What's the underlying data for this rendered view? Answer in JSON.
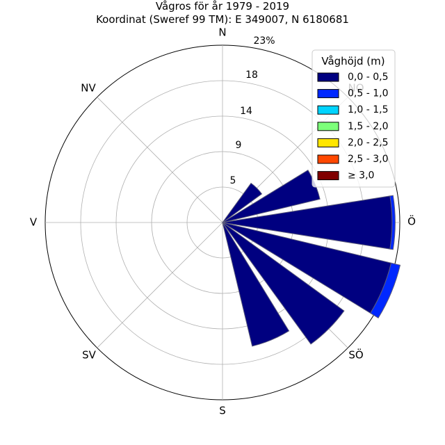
{
  "chart_data": {
    "type": "bar",
    "subtype": "polar-wind-rose",
    "title": "Vågros för år 1979 - 2019",
    "subtitle": "Koordinat (Sweref 99 TM): E 349007, N 6180681",
    "direction_labels": [
      "N",
      "NV",
      "V",
      "SV",
      "S",
      "SÖ",
      "Ö",
      "NO"
    ],
    "radial_ticks": [
      "5",
      "9",
      "14",
      "18",
      "23%"
    ],
    "radial_tick_values": [
      4.6,
      9.2,
      13.8,
      18.4,
      23
    ],
    "rmax": 23,
    "grid": true,
    "legend": {
      "title": "Våghöjd (m)",
      "placement": "top-right",
      "items": [
        {
          "label": "0,0 - 0,5",
          "color": "#000080"
        },
        {
          "label": "0,5 - 1,0",
          "color": "#0028ff"
        },
        {
          "label": "1,0 - 1,5",
          "color": "#00d4ff"
        },
        {
          "label": "1,5 - 2,0",
          "color": "#7dff7a"
        },
        {
          "label": "2,0 - 2,5",
          "color": "#ffe600"
        },
        {
          "label": "2,5 - 3,0",
          "color": "#ff4800"
        },
        {
          "label": "≥ 3,0",
          "color": "#800000"
        }
      ]
    },
    "categories": [
      "67.5",
      "90",
      "112.5",
      "135",
      "157.5"
    ],
    "series": [
      {
        "name": "0,0 - 0,5",
        "values": [
          13.0,
          22.0,
          22.5,
          19.5,
          16.5
        ]
      },
      {
        "name": "0,5 - 1,0",
        "values": [
          0.0,
          0.4,
          1.2,
          0.0,
          0.0
        ]
      }
    ],
    "extra_bars": [
      {
        "direction": "45",
        "values": [
          6.3,
          0.0
        ]
      },
      {
        "direction": "180",
        "values": [
          0.0,
          0.0
        ]
      }
    ]
  }
}
